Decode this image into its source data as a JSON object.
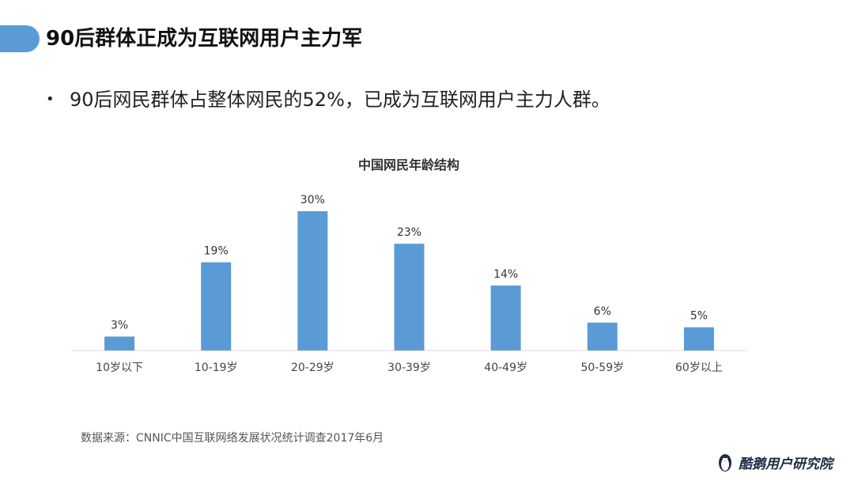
{
  "header": {
    "title": "90后群体正成为互联网用户主力军"
  },
  "bullet": {
    "symbol": "•",
    "text": "90后网民群体占整体网民的52%，已成为互联网用户主力人群。"
  },
  "source": {
    "text": "数据来源：CNNIC中国互联网络发展状况统计调查2017年6月"
  },
  "logo": {
    "text": "酷鹅用户研究院",
    "icon": "penguin-logo-icon"
  },
  "colors": {
    "accent": "#5b9bd5",
    "bar": "#5b9bd5"
  },
  "chart_data": {
    "type": "bar",
    "title": "中国网民年龄结构",
    "categories": [
      "10岁以下",
      "10-19岁",
      "20-29岁",
      "30-39岁",
      "40-49岁",
      "50-59岁",
      "60岁以上"
    ],
    "values": [
      3,
      19,
      30,
      23,
      14,
      6,
      5
    ],
    "value_labels": [
      "3%",
      "19%",
      "30%",
      "23%",
      "14%",
      "6%",
      "5%"
    ],
    "xlabel": "",
    "ylabel": "",
    "ylim": [
      0,
      30
    ],
    "grid": false,
    "legend": "none"
  }
}
